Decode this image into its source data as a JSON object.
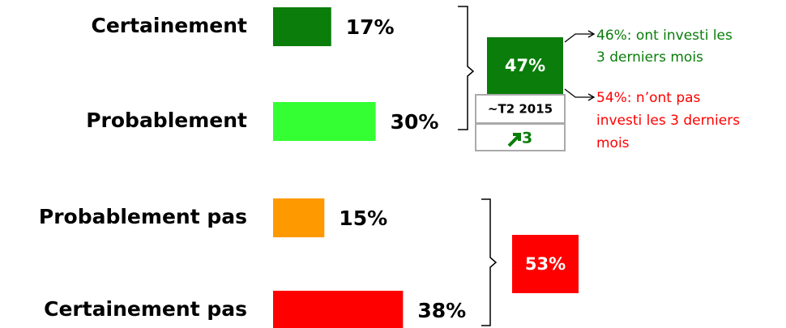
{
  "chart_data": {
    "type": "bar",
    "categories": [
      "Certainement",
      "Probablement",
      "Probablement pas",
      "Certainement pas"
    ],
    "values": [
      17,
      30,
      15,
      38
    ],
    "value_labels": [
      "17%",
      "30%",
      "15%",
      "38%"
    ],
    "colors": [
      "#0a7d0a",
      "#33ff33",
      "#ff9900",
      "#ff0000"
    ],
    "annotations": {
      "positive_total": "47%",
      "positive_color": "#0a7d0a",
      "period": "~T2 2015",
      "change": "3",
      "negative_total": "53%",
      "negative_color": "#ff0000",
      "note_invested": [
        "46%: ont investi les",
        "3 derniers mois"
      ],
      "note_invested_color": "#0a7d0a",
      "note_not_invested": [
        "54%: n’ont pas",
        "investi les 3 derniers",
        "mois"
      ],
      "note_not_invested_color": "#ff0000"
    }
  }
}
